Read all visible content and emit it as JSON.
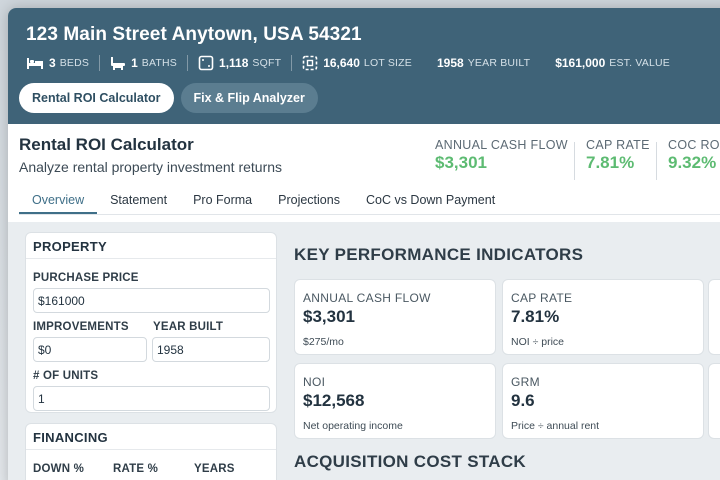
{
  "property": {
    "address": "123 Main Street Anytown, USA 54321",
    "facts": [
      {
        "icon": "bed-icon",
        "value": "3",
        "label": "BEDS"
      },
      {
        "icon": "bath-icon",
        "value": "1",
        "label": "BATHS"
      },
      {
        "icon": "sqft-icon",
        "value": "1,118",
        "label": "SQFT"
      },
      {
        "icon": "lot-size-icon",
        "value": "16,640",
        "label": "LOT SIZE"
      },
      {
        "icon": "",
        "value": "1958",
        "label": "YEAR BUILT"
      },
      {
        "icon": "",
        "value": "$161,000",
        "label": "EST. VALUE"
      }
    ]
  },
  "tool_tabs": [
    {
      "label": "Rental ROI Calculator",
      "active": true
    },
    {
      "label": "Fix & Flip Analyzer",
      "active": false
    }
  ],
  "calculator": {
    "title": "Rental ROI Calculator",
    "subtitle": "Analyze rental property investment returns",
    "metrics": [
      {
        "label": "ANNUAL CASH FLOW",
        "value": "$3,301"
      },
      {
        "label": "CAP RATE",
        "value": "7.81%"
      },
      {
        "label": "COC ROI",
        "value": "9.32%"
      }
    ],
    "accent_color": "#5dbb72"
  },
  "section_tabs": [
    {
      "label": "Overview",
      "active": true
    },
    {
      "label": "Statement",
      "active": false
    },
    {
      "label": "Pro Forma",
      "active": false
    },
    {
      "label": "Projections",
      "active": false
    },
    {
      "label": "CoC vs Down Payment",
      "active": false
    }
  ],
  "property_panel": {
    "heading": "PROPERTY",
    "purchase_price_label": "PURCHASE PRICE",
    "purchase_price_value": "$161000",
    "improvements_label": "IMPROVEMENTS",
    "improvements_value": "$0",
    "year_built_label": "YEAR BUILT",
    "year_built_value": "1958",
    "units_label": "# OF UNITS",
    "units_value": "1"
  },
  "financing_panel": {
    "heading": "FINANCING",
    "down_label": "DOWN %",
    "rate_label": "RATE %",
    "years_label": "YEARS"
  },
  "kpis": {
    "title": "KEY PERFORMANCE INDICATORS",
    "cards": [
      {
        "label": "ANNUAL CASH FLOW",
        "value": "$3,301",
        "note": "$275/mo"
      },
      {
        "label": "CAP RATE",
        "value": "7.81%",
        "note": "NOI ÷ price"
      },
      {
        "label": "NOI",
        "value": "$12,568",
        "note": "Net operating income"
      },
      {
        "label": "GRM",
        "value": "9.6",
        "note": "Price ÷ annual rent"
      }
    ]
  },
  "acquisition": {
    "title": "ACQUISITION COST STACK"
  },
  "colors": {
    "header_bg": "#3f6378",
    "active_tab": "#3f6f88",
    "positive": "#5dbb72"
  }
}
